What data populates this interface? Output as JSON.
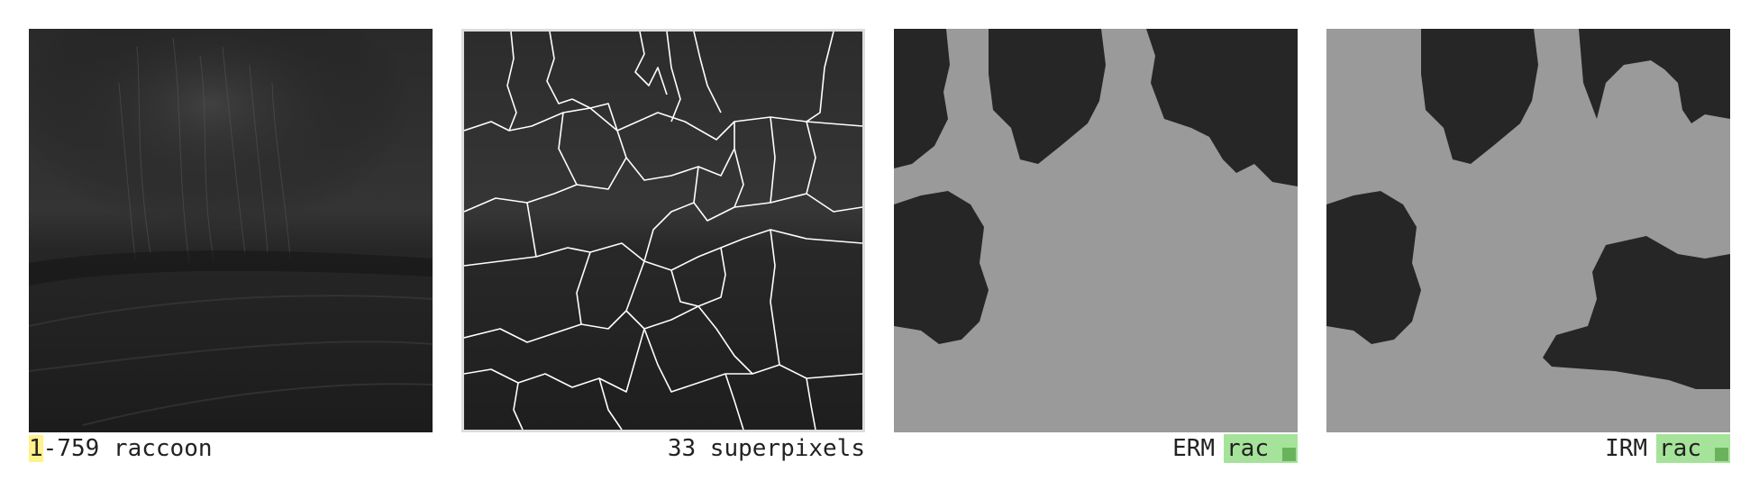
{
  "panels": [
    {
      "id": "original",
      "caption_index": "1",
      "caption_rest": "-759 raccoon"
    },
    {
      "id": "superpixels",
      "caption": "33 superpixels"
    },
    {
      "id": "erm",
      "caption": "ERM",
      "badge_label": "rac",
      "badge_color": "#a6e39a"
    },
    {
      "id": "irm",
      "caption": "IRM",
      "badge_label": "rac",
      "badge_color": "#a6e39a"
    }
  ],
  "colors": {
    "mask_gray": "#9a9a9a",
    "contour_white": "#ffffff",
    "index_highlight": "#fff28a"
  }
}
